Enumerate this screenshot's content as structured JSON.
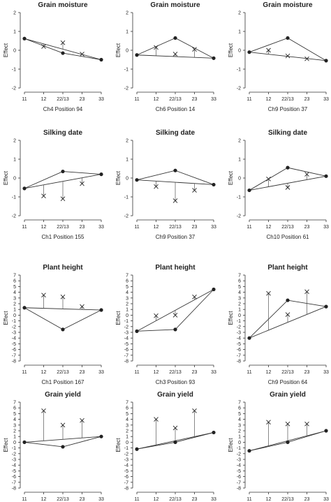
{
  "chart_data": [
    {
      "type": "line",
      "title": "Grain moisture",
      "xlabel": "Ch4 Position 94",
      "ylabel": "Effect",
      "categories": [
        "11",
        "12",
        "22/13",
        "23",
        "33"
      ],
      "ylim": [
        -2,
        2
      ],
      "yticks": [
        -2,
        -1,
        0,
        1,
        2
      ],
      "additive": [
        0.62,
        -0.5
      ],
      "fitted": [
        0.62,
        null,
        -0.15,
        null,
        -0.5
      ],
      "observed": [
        null,
        0.2,
        0.4,
        -0.2,
        null
      ]
    },
    {
      "type": "line",
      "title": "Grain moisture",
      "xlabel": "Ch6 Position 14",
      "ylabel": "Effect",
      "categories": [
        "11",
        "12",
        "22/13",
        "23",
        "33"
      ],
      "ylim": [
        -2,
        2
      ],
      "yticks": [
        -2,
        -1,
        0,
        1,
        2
      ],
      "additive": [
        -0.25,
        -0.42
      ],
      "fitted": [
        -0.25,
        null,
        0.65,
        null,
        -0.42
      ],
      "observed": [
        null,
        0.15,
        -0.2,
        0.05,
        null
      ]
    },
    {
      "type": "line",
      "title": "Grain moisture",
      "xlabel": "Ch9 Position 37",
      "ylabel": "Effect",
      "categories": [
        "11",
        "12",
        "22/13",
        "23",
        "33"
      ],
      "ylim": [
        -2,
        2
      ],
      "yticks": [
        -2,
        -1,
        0,
        1,
        2
      ],
      "additive": [
        -0.1,
        -0.55
      ],
      "fitted": [
        -0.1,
        null,
        0.65,
        null,
        -0.55
      ],
      "observed": [
        null,
        0.0,
        -0.3,
        -0.45,
        null
      ]
    },
    {
      "type": "line",
      "title": "Silking date",
      "xlabel": "Ch1 Position 155",
      "ylabel": "Effect",
      "categories": [
        "11",
        "12",
        "22/13",
        "23",
        "33"
      ],
      "ylim": [
        -2,
        2
      ],
      "yticks": [
        -2,
        -1,
        0,
        1,
        2
      ],
      "additive": [
        -0.55,
        0.2
      ],
      "fitted": [
        -0.55,
        null,
        0.35,
        null,
        0.2
      ],
      "observed": [
        null,
        -0.95,
        -1.1,
        -0.3,
        null
      ]
    },
    {
      "type": "line",
      "title": "Silking date",
      "xlabel": "Ch9 Position 37",
      "ylabel": "Effect",
      "categories": [
        "11",
        "12",
        "22/13",
        "23",
        "33"
      ],
      "ylim": [
        -2,
        2
      ],
      "yticks": [
        -2,
        -1,
        0,
        1,
        2
      ],
      "additive": [
        -0.1,
        -0.35
      ],
      "fitted": [
        -0.1,
        null,
        0.4,
        null,
        -0.35
      ],
      "observed": [
        null,
        -0.45,
        -1.2,
        -0.65,
        null
      ]
    },
    {
      "type": "line",
      "title": "Silking date",
      "xlabel": "Ch10 Position 61",
      "ylabel": "Effect",
      "categories": [
        "11",
        "12",
        "22/13",
        "23",
        "33"
      ],
      "ylim": [
        -2,
        2
      ],
      "yticks": [
        -2,
        -1,
        0,
        1,
        2
      ],
      "additive": [
        -0.65,
        0.1
      ],
      "fitted": [
        -0.65,
        null,
        0.55,
        null,
        0.1
      ],
      "observed": [
        null,
        -0.05,
        -0.5,
        0.2,
        null
      ]
    },
    {
      "type": "line",
      "title": "Plant height",
      "xlabel": "Ch1 Position 167",
      "ylabel": "Effect",
      "categories": [
        "11",
        "12",
        "22/13",
        "23",
        "33"
      ],
      "ylim": [
        -8,
        7
      ],
      "yticks": [
        -8,
        -7,
        -6,
        -5,
        -4,
        -3,
        -2,
        -1,
        0,
        1,
        2,
        3,
        4,
        5,
        6,
        7
      ],
      "additive": [
        1.3,
        0.9
      ],
      "fitted": [
        1.3,
        null,
        -2.5,
        null,
        0.9
      ],
      "observed": [
        null,
        3.5,
        3.2,
        1.5,
        null
      ]
    },
    {
      "type": "line",
      "title": "Plant height",
      "xlabel": "Ch3 Position 93",
      "ylabel": "Effect",
      "categories": [
        "11",
        "12",
        "22/13",
        "23",
        "33"
      ],
      "ylim": [
        -8,
        7
      ],
      "yticks": [
        -8,
        -7,
        -6,
        -5,
        -4,
        -3,
        -2,
        -1,
        0,
        1,
        2,
        3,
        4,
        5,
        6,
        7
      ],
      "additive": [
        -2.8,
        4.5
      ],
      "fitted": [
        -2.8,
        null,
        -2.5,
        null,
        4.5
      ],
      "observed": [
        null,
        -0.1,
        0.0,
        3.2,
        null
      ]
    },
    {
      "type": "line",
      "title": "Plant height",
      "xlabel": "Ch9 Position 64",
      "ylabel": "Effect",
      "categories": [
        "11",
        "12",
        "22/13",
        "23",
        "33"
      ],
      "ylim": [
        -8,
        7
      ],
      "yticks": [
        -8,
        -7,
        -6,
        -5,
        -4,
        -3,
        -2,
        -1,
        0,
        1,
        2,
        3,
        4,
        5,
        6,
        7
      ],
      "additive": [
        -4.0,
        1.5
      ],
      "fitted": [
        -4.0,
        null,
        2.6,
        null,
        1.5
      ],
      "observed": [
        null,
        3.8,
        0.1,
        4.1,
        null
      ]
    },
    {
      "type": "line",
      "title": "Grain yield",
      "xlabel": "Ch1 Position 157",
      "ylabel": "Effect",
      "categories": [
        "11",
        "12",
        "22/13",
        "23",
        "33"
      ],
      "ylim": [
        -8,
        7
      ],
      "yticks": [
        -8,
        -7,
        -6,
        -5,
        -4,
        -3,
        -2,
        -1,
        0,
        1,
        2,
        3,
        4,
        5,
        6,
        7
      ],
      "additive": [
        0.0,
        1.0
      ],
      "fitted": [
        0.0,
        null,
        -0.8,
        null,
        1.0
      ],
      "observed": [
        null,
        5.5,
        3.0,
        3.8,
        null
      ]
    },
    {
      "type": "line",
      "title": "Grain yield",
      "xlabel": "Ch3 Position 91",
      "ylabel": "Effect",
      "categories": [
        "11",
        "12",
        "22/13",
        "23",
        "33"
      ],
      "ylim": [
        -8,
        7
      ],
      "yticks": [
        -8,
        -7,
        -6,
        -5,
        -4,
        -3,
        -2,
        -1,
        0,
        1,
        2,
        3,
        4,
        5,
        6,
        7
      ],
      "additive": [
        -1.2,
        1.7
      ],
      "fitted": [
        -1.2,
        null,
        0.0,
        null,
        1.7
      ],
      "observed": [
        null,
        4.0,
        2.5,
        5.5,
        null
      ]
    },
    {
      "type": "line",
      "title": "Grain yield",
      "xlabel": "Ch9 Position 54",
      "ylabel": "Effect",
      "categories": [
        "11",
        "12",
        "22/13",
        "23",
        "33"
      ],
      "ylim": [
        -8,
        7
      ],
      "yticks": [
        -8,
        -7,
        -6,
        -5,
        -4,
        -3,
        -2,
        -1,
        0,
        1,
        2,
        3,
        4,
        5,
        6,
        7
      ],
      "additive": [
        -1.5,
        2.0
      ],
      "fitted": [
        -1.5,
        null,
        0.0,
        null,
        2.0
      ],
      "observed": [
        null,
        3.5,
        3.2,
        3.2,
        null
      ]
    }
  ]
}
